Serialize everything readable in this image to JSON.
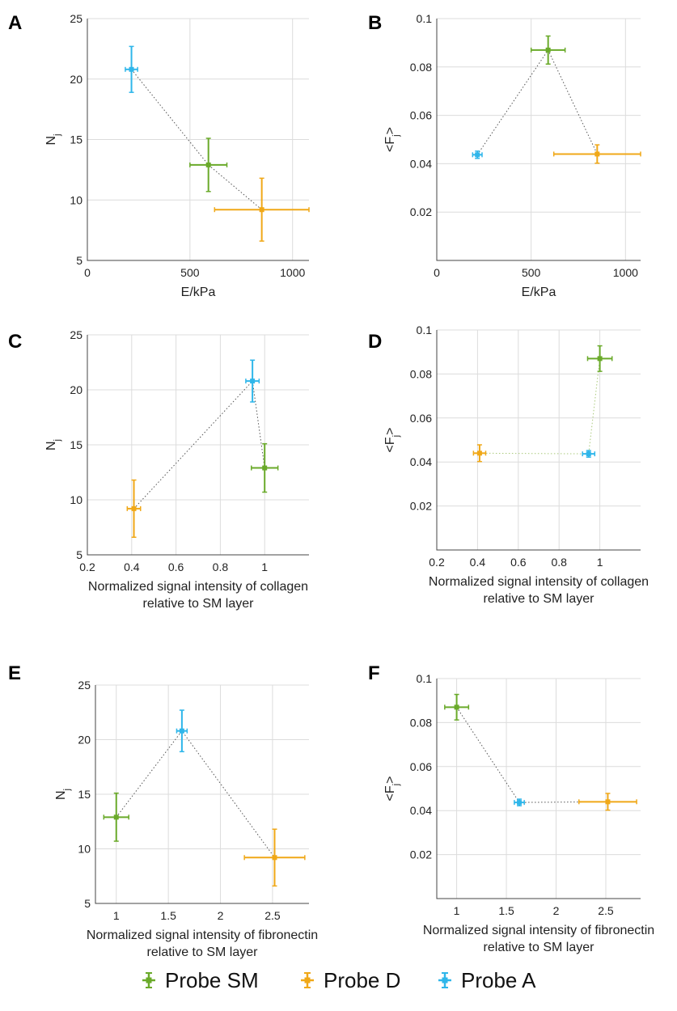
{
  "colors": {
    "Probe SM": "#6aaa2a",
    "Probe D": "#f0a818",
    "Probe A": "#2fb6ea"
  },
  "legend": [
    {
      "name": "Probe SM",
      "color": "#6aaa2a"
    },
    {
      "name": "Probe D",
      "color": "#f0a818"
    },
    {
      "name": "Probe A",
      "color": "#2fb6ea"
    }
  ],
  "chart_data": [
    {
      "type": "scatter",
      "panel": "A",
      "xlabel": [
        "E/kPa"
      ],
      "ylabel": "N",
      "ylabel_sub": "j",
      "xlim": [
        0,
        1080
      ],
      "ylim": [
        5,
        25
      ],
      "xticks": [
        0,
        500,
        1000
      ],
      "yticks": [
        5,
        10,
        15,
        20,
        25
      ],
      "xtick_labels": [
        "0",
        "500",
        "1000"
      ],
      "ytick_labels": [
        "5",
        "10",
        "15",
        "20",
        "25"
      ],
      "connect_order": [
        "Probe A",
        "Probe SM",
        "Probe D"
      ],
      "connector_color": "#555555",
      "series": [
        {
          "name": "Probe SM",
          "x": 590,
          "y": 12.9,
          "xerr": 90,
          "yerr": 2.2
        },
        {
          "name": "Probe D",
          "x": 850,
          "y": 9.2,
          "xerr": 230,
          "yerr": 2.6
        },
        {
          "name": "Probe A",
          "x": 215,
          "y": 20.8,
          "xerr": 30,
          "yerr": 1.9
        }
      ]
    },
    {
      "type": "scatter",
      "panel": "B",
      "xlabel": [
        "E/kPa"
      ],
      "ylabel": "<F >",
      "ylabel_sub": "j",
      "xlim": [
        0,
        1080
      ],
      "ylim": [
        0,
        0.1
      ],
      "xticks": [
        0,
        500,
        1000
      ],
      "yticks": [
        0.02,
        0.04,
        0.06,
        0.08,
        0.1
      ],
      "xtick_labels": [
        "0",
        "500",
        "1000"
      ],
      "ytick_labels": [
        "0.02",
        "0.04",
        "0.06",
        "0.08",
        "0.1"
      ],
      "connect_order": [
        "Probe A",
        "Probe SM",
        "Probe D"
      ],
      "connector_color": "#555555",
      "series": [
        {
          "name": "Probe SM",
          "x": 590,
          "y": 0.087,
          "xerr": 90,
          "yerr": 0.0058
        },
        {
          "name": "Probe D",
          "x": 850,
          "y": 0.044,
          "xerr": 230,
          "yerr": 0.0038
        },
        {
          "name": "Probe A",
          "x": 215,
          "y": 0.0437,
          "xerr": 25,
          "yerr": 0.0015
        }
      ]
    },
    {
      "type": "scatter",
      "panel": "C",
      "xlabel": [
        "Normalized signal intensity of collagen",
        "relative to SM layer"
      ],
      "ylabel": "N",
      "ylabel_sub": "j",
      "xlim": [
        0.2,
        1.2
      ],
      "ylim": [
        5,
        25
      ],
      "xticks": [
        0.2,
        0.4,
        0.6,
        0.8,
        1
      ],
      "yticks": [
        5,
        10,
        15,
        20,
        25
      ],
      "xtick_labels": [
        "0.2",
        "0.4",
        "0.6",
        "0.8",
        "1"
      ],
      "ytick_labels": [
        "5",
        "10",
        "15",
        "20",
        "25"
      ],
      "connect_order": [
        "Probe D",
        "Probe A",
        "Probe SM"
      ],
      "connector_color": "#555555",
      "series": [
        {
          "name": "Probe SM",
          "x": 1.0,
          "y": 12.9,
          "xerr": 0.06,
          "yerr": 2.2
        },
        {
          "name": "Probe D",
          "x": 0.41,
          "y": 9.2,
          "xerr": 0.03,
          "yerr": 2.6
        },
        {
          "name": "Probe A",
          "x": 0.945,
          "y": 20.8,
          "xerr": 0.03,
          "yerr": 1.9
        }
      ]
    },
    {
      "type": "scatter",
      "panel": "D",
      "xlabel": [
        "Normalized signal intensity of collagen",
        "relative to SM layer"
      ],
      "ylabel": "<F >",
      "ylabel_sub": "j",
      "xlim": [
        0.2,
        1.2
      ],
      "ylim": [
        0,
        0.1
      ],
      "xticks": [
        0.2,
        0.4,
        0.6,
        0.8,
        1
      ],
      "yticks": [
        0.02,
        0.04,
        0.06,
        0.08,
        0.1
      ],
      "xtick_labels": [
        "0.2",
        "0.4",
        "0.6",
        "0.8",
        "1"
      ],
      "ytick_labels": [
        "0.02",
        "0.04",
        "0.06",
        "0.08",
        "0.1"
      ],
      "connect_order": [
        "Probe D",
        "Probe A",
        "Probe SM"
      ],
      "connector_color": "#a9c97a",
      "series": [
        {
          "name": "Probe SM",
          "x": 1.0,
          "y": 0.087,
          "xerr": 0.06,
          "yerr": 0.0058
        },
        {
          "name": "Probe D",
          "x": 0.41,
          "y": 0.044,
          "xerr": 0.03,
          "yerr": 0.0038
        },
        {
          "name": "Probe A",
          "x": 0.945,
          "y": 0.0437,
          "xerr": 0.03,
          "yerr": 0.0015
        }
      ]
    },
    {
      "type": "scatter",
      "panel": "E",
      "xlabel": [
        "Normalized signal intensity of fibronectin",
        "relative to SM layer"
      ],
      "ylabel": "N",
      "ylabel_sub": "j",
      "xlim": [
        0.8,
        2.85
      ],
      "ylim": [
        5,
        25
      ],
      "xticks": [
        1,
        1.5,
        2,
        2.5
      ],
      "yticks": [
        5,
        10,
        15,
        20,
        25
      ],
      "xtick_labels": [
        "1",
        "1.5",
        "2",
        "2.5"
      ],
      "ytick_labels": [
        "5",
        "10",
        "15",
        "20",
        "25"
      ],
      "connect_order": [
        "Probe SM",
        "Probe A",
        "Probe D"
      ],
      "connector_color": "#555555",
      "series": [
        {
          "name": "Probe SM",
          "x": 1.0,
          "y": 12.9,
          "xerr": 0.12,
          "yerr": 2.2
        },
        {
          "name": "Probe D",
          "x": 2.52,
          "y": 9.2,
          "xerr": 0.29,
          "yerr": 2.6
        },
        {
          "name": "Probe A",
          "x": 1.63,
          "y": 20.8,
          "xerr": 0.05,
          "yerr": 1.9
        }
      ]
    },
    {
      "type": "scatter",
      "panel": "F",
      "xlabel": [
        "Normalized signal intensity of fibronectin",
        "relative to SM layer"
      ],
      "ylabel": "<F >",
      "ylabel_sub": "j",
      "xlim": [
        0.8,
        2.85
      ],
      "ylim": [
        0,
        0.1
      ],
      "xticks": [
        1,
        1.5,
        2,
        2.5
      ],
      "yticks": [
        0.02,
        0.04,
        0.06,
        0.08,
        0.1
      ],
      "xtick_labels": [
        "1",
        "1.5",
        "2",
        "2.5"
      ],
      "ytick_labels": [
        "0.02",
        "0.04",
        "0.06",
        "0.08",
        "0.1"
      ],
      "connect_order": [
        "Probe SM",
        "Probe A",
        "Probe D"
      ],
      "connector_color": "#555555",
      "series": [
        {
          "name": "Probe SM",
          "x": 1.0,
          "y": 0.087,
          "xerr": 0.12,
          "yerr": 0.0058
        },
        {
          "name": "Probe D",
          "x": 2.52,
          "y": 0.044,
          "xerr": 0.29,
          "yerr": 0.0038
        },
        {
          "name": "Probe A",
          "x": 1.63,
          "y": 0.0437,
          "xerr": 0.05,
          "yerr": 0.0015
        }
      ]
    }
  ]
}
